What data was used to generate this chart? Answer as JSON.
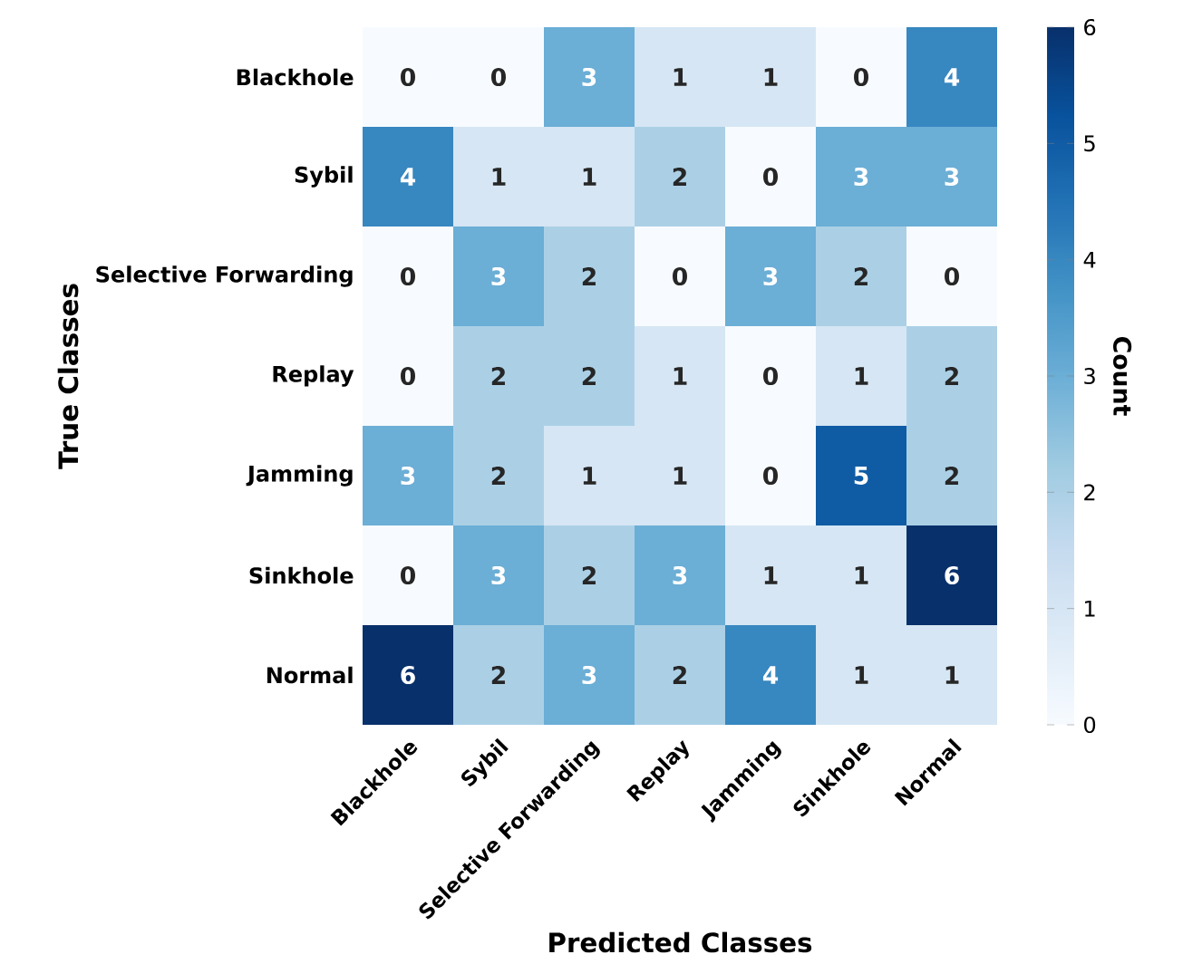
{
  "chart_data": {
    "type": "heatmap",
    "xlabel": "Predicted Classes",
    "ylabel": "True Classes",
    "clabel": "Count",
    "categories": [
      "Blackhole",
      "Sybil",
      "Selective Forwarding",
      "Replay",
      "Jamming",
      "Sinkhole",
      "Normal"
    ],
    "y_categories": [
      "Blackhole",
      "Sybil",
      "Selective Forwarding",
      "Replay",
      "Jamming",
      "Sinkhole",
      "Normal"
    ],
    "cells": [
      [
        0,
        0,
        3,
        1,
        1,
        0,
        4
      ],
      [
        4,
        1,
        1,
        2,
        0,
        3,
        3
      ],
      [
        0,
        3,
        2,
        0,
        3,
        2,
        0
      ],
      [
        0,
        2,
        2,
        1,
        0,
        1,
        2
      ],
      [
        3,
        2,
        1,
        1,
        0,
        5,
        2
      ],
      [
        0,
        3,
        2,
        3,
        1,
        1,
        6
      ],
      [
        6,
        2,
        3,
        2,
        4,
        1,
        1
      ]
    ],
    "clim": [
      0,
      6
    ],
    "cticks": [
      0,
      1,
      2,
      3,
      4,
      5,
      6
    ],
    "data_labels": true
  }
}
